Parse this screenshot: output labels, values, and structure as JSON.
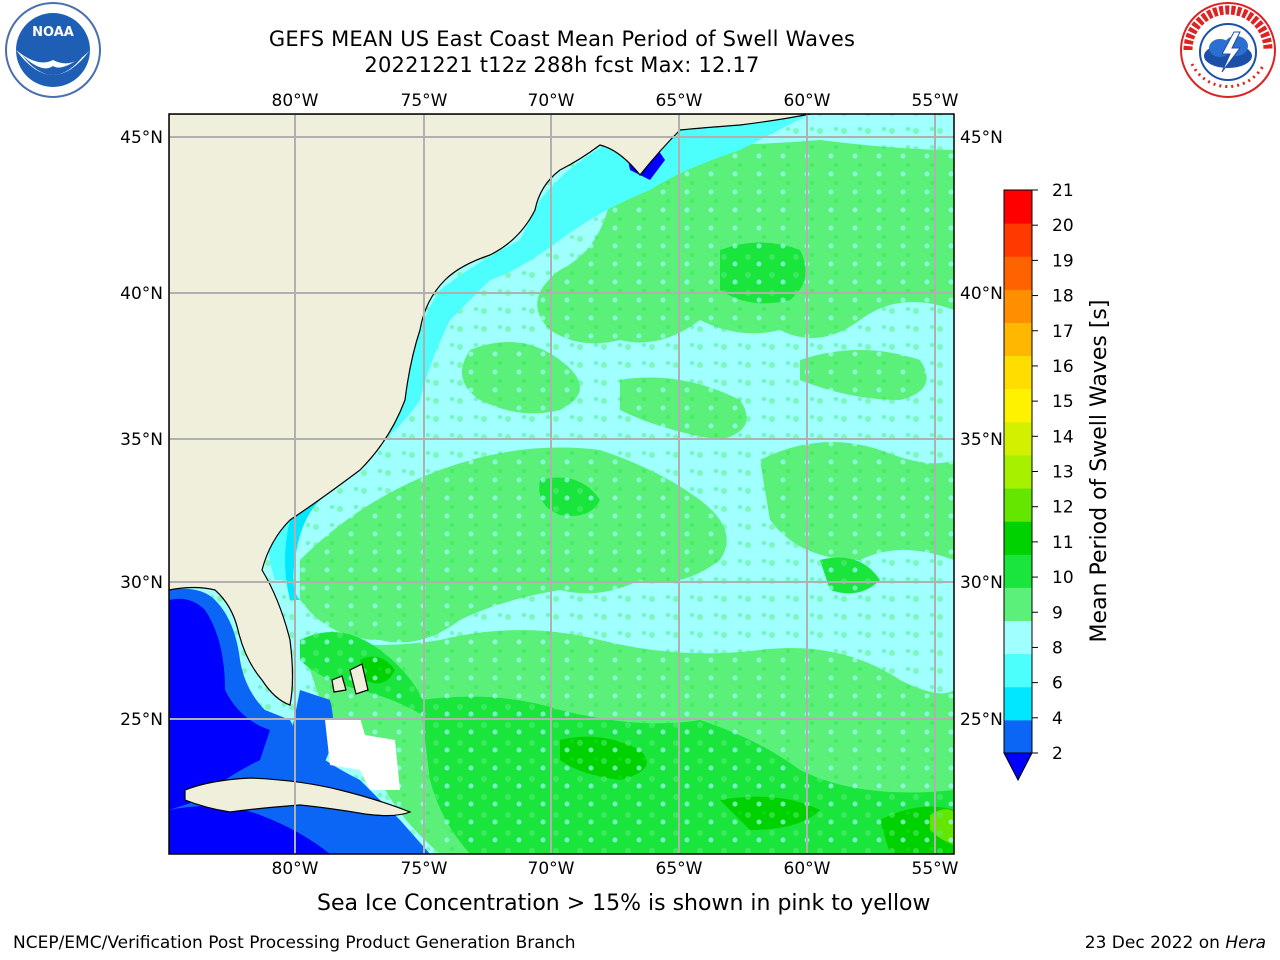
{
  "title": {
    "line1": "GEFS MEAN US East Coast Mean Period of Swell Waves",
    "line2": "20221221 t12z 288h fcst   Max: 12.17"
  },
  "map": {
    "lon_labels": [
      "80°W",
      "75°W",
      "70°W",
      "65°W",
      "60°W",
      "55°W"
    ],
    "lat_labels": [
      "45°N",
      "40°N",
      "35°N",
      "30°N",
      "25°N"
    ],
    "colors": {
      "land": "#efefdc",
      "ocean_dominant": "#a0ffff",
      "grid": "#b0b0b0"
    }
  },
  "colorbar": {
    "label": "Mean Period of Swell Waves [s]",
    "ticks": [
      "2",
      "4",
      "6",
      "8",
      "9",
      "10",
      "11",
      "12",
      "13",
      "14",
      "15",
      "16",
      "17",
      "18",
      "19",
      "20",
      "21"
    ],
    "colors": [
      "#0c66f5",
      "#00e7ff",
      "#4dfffc",
      "#a0ffff",
      "#5af07a",
      "#19e53c",
      "#00d200",
      "#64e600",
      "#a6f000",
      "#d2f000",
      "#fff200",
      "#ffdd00",
      "#ffb700",
      "#ff8f00",
      "#ff6300",
      "#ff3a00",
      "#ff0000"
    ],
    "under_color": "#0000ff"
  },
  "footer": {
    "note": "Sea Ice Concentration > 15% is shown in pink to yellow",
    "credit": "NCEP/EMC/Verification Post Processing Product Generation Branch",
    "date": "23 Dec 2022 on",
    "host": "Hera"
  },
  "logos": {
    "noaa": "NOAA",
    "nws": "NATIONAL WEATHER SERVICE"
  }
}
